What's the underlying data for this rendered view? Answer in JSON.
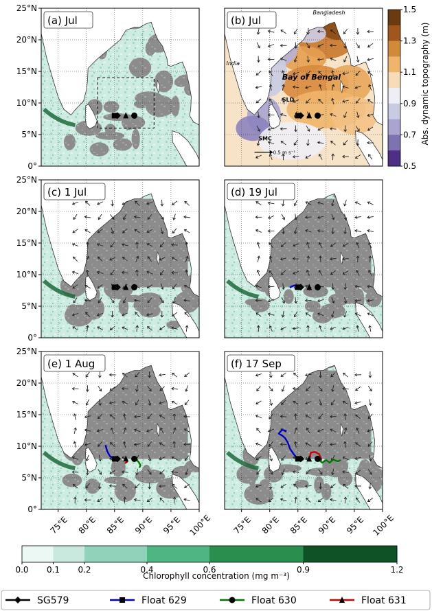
{
  "figure": {
    "panels": [
      {
        "id": "a",
        "label": "(a) Jul",
        "field": "chlorophyll",
        "box": true
      },
      {
        "id": "b",
        "label": "(b) Jul",
        "field": "dynamic_topography"
      },
      {
        "id": "c",
        "label": "(c) 1 Jul",
        "field": "chlorophyll"
      },
      {
        "id": "d",
        "label": "(d) 19 Jul",
        "field": "chlorophyll"
      },
      {
        "id": "e",
        "label": "(e) 1 Aug",
        "field": "chlorophyll"
      },
      {
        "id": "f",
        "label": "(f) 17 Sep",
        "field": "chlorophyll"
      }
    ],
    "map_annotations": {
      "bangladesh": "Bangladesh",
      "india": "India",
      "bay_of_bengal": "Bay of Bengal",
      "sld": "SLD",
      "smc": "SMC",
      "scale_arrow": "0.5 m s⁻¹"
    },
    "ssh_colorbar": {
      "label": "Abs. dynamic topography (m)",
      "ticks": [
        "1.5",
        "1.3",
        "1.1",
        "0.9",
        "0.7",
        "0.5"
      ],
      "colors": [
        "#6b3a10",
        "#a0561c",
        "#d08a3a",
        "#f0b56a",
        "#f7dcb7",
        "#eeeef4",
        "#c9cbe3",
        "#a9a4d0",
        "#7e72b2",
        "#4d2f86"
      ]
    },
    "chl_colorbar": {
      "label": "Chlorophyll concentration (mg m⁻³)",
      "ticks": [
        "0.0",
        "0.1",
        "0.2",
        "0.4",
        "0.6",
        "0.9",
        "1.2"
      ],
      "colors": [
        "#ecf8f4",
        "#c9e9de",
        "#8fd3bb",
        "#4fb583",
        "#2a8f4e",
        "#0f5226"
      ]
    },
    "legend": [
      {
        "label": "SG579",
        "color": "#000000",
        "marker": "diamond"
      },
      {
        "label": "Float 629",
        "color": "#0000cc",
        "marker": "square"
      },
      {
        "label": "Float 630",
        "color": "#007700",
        "marker": "circle"
      },
      {
        "label": "Float 631",
        "color": "#cc0000",
        "marker": "triangle"
      }
    ],
    "land_color": "#ffffff",
    "nodata_color": "#8c8c8c"
  },
  "chart_data": {
    "type": "map",
    "x_axis": {
      "ticks": [
        "75°E",
        "80°E",
        "85°E",
        "90°E",
        "95°E",
        "100°E"
      ],
      "range": [
        72,
        100
      ]
    },
    "y_axis": {
      "ticks": [
        "0°",
        "5°N",
        "10°N",
        "15°N",
        "20°N",
        "25°N"
      ],
      "range": [
        0,
        25
      ]
    },
    "study_box": {
      "lon": [
        82,
        92
      ],
      "lat": [
        6,
        14
      ]
    },
    "markers": [
      {
        "name": "SG579",
        "lon": 85.5,
        "lat": 8.0
      },
      {
        "name": "Float 629",
        "lon": 85.0,
        "lat": 8.0
      },
      {
        "name": "Float 631",
        "lon": 87.0,
        "lat": 8.0
      },
      {
        "name": "Float 630",
        "lon": 88.5,
        "lat": 8.0
      }
    ],
    "tracks": {
      "d": [
        {
          "name": "Float 629",
          "points": [
            [
              85.0,
              8.0
            ],
            [
              84.4,
              8.3
            ],
            [
              83.8,
              8.1
            ],
            [
              83.6,
              7.9
            ]
          ]
        },
        {
          "name": "Float 631",
          "points": [
            [
              87.0,
              8.0
            ],
            [
              87.1,
              7.7
            ],
            [
              87.0,
              7.5
            ]
          ]
        },
        {
          "name": "Float 630",
          "points": [
            [
              88.5,
              8.0
            ],
            [
              88.6,
              7.7
            ],
            [
              88.4,
              7.5
            ]
          ]
        }
      ],
      "e": [
        {
          "name": "Float 629",
          "points": [
            [
              85.0,
              8.0
            ],
            [
              84.2,
              8.4
            ],
            [
              83.7,
              9.2
            ],
            [
              83.4,
              10.2
            ]
          ]
        },
        {
          "name": "Float 631",
          "points": [
            [
              87.0,
              8.0
            ],
            [
              87.2,
              7.5
            ],
            [
              86.8,
              7.3
            ]
          ]
        },
        {
          "name": "Float 630",
          "points": [
            [
              88.5,
              8.0
            ],
            [
              89.2,
              7.6
            ],
            [
              89.6,
              7.0
            ],
            [
              89.4,
              6.6
            ]
          ]
        }
      ],
      "f": [
        {
          "name": "Float 629",
          "points": [
            [
              85.0,
              8.0
            ],
            [
              84.3,
              8.7
            ],
            [
              83.6,
              9.6
            ],
            [
              83.2,
              10.6
            ],
            [
              82.7,
              11.3
            ],
            [
              82.2,
              11.7
            ],
            [
              81.6,
              12.0
            ],
            [
              82.2,
              12.6
            ],
            [
              83.0,
              12.4
            ]
          ]
        },
        {
          "name": "Float 631",
          "points": [
            [
              87.0,
              8.0
            ],
            [
              87.3,
              9.0
            ],
            [
              88.0,
              9.1
            ],
            [
              88.7,
              8.8
            ],
            [
              89.1,
              8.1
            ],
            [
              88.7,
              7.7
            ],
            [
              88.5,
              8.0
            ]
          ]
        },
        {
          "name": "Float 630",
          "points": [
            [
              88.5,
              8.0
            ],
            [
              89.3,
              7.4
            ],
            [
              90.0,
              7.8
            ],
            [
              90.6,
              7.4
            ],
            [
              91.3,
              7.9
            ],
            [
              92.0,
              7.6
            ],
            [
              92.6,
              7.8
            ]
          ]
        }
      ]
    }
  }
}
